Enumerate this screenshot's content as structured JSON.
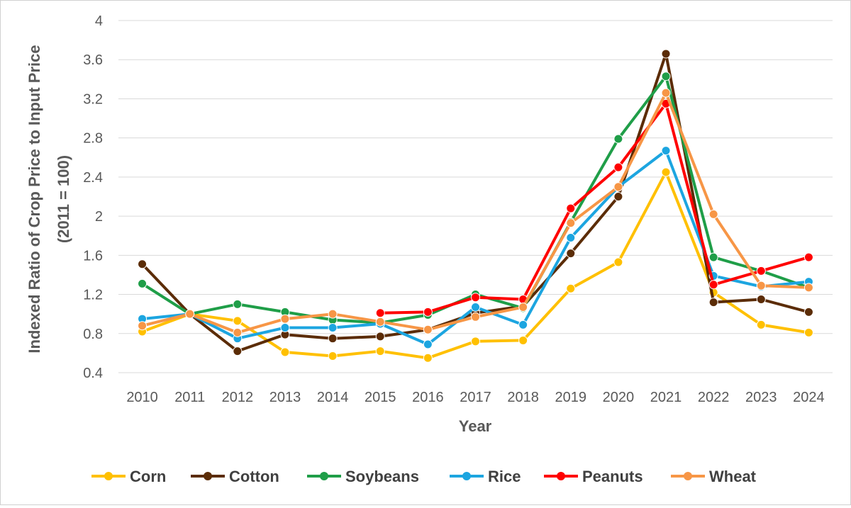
{
  "chart_data": {
    "type": "line",
    "title": "",
    "xlabel": "Year",
    "ylabel_line1": "Indexed Ratio of Crop Price to Input Price",
    "ylabel_line2": "(2011 = 100)",
    "ylim": [
      0.4,
      4
    ],
    "yticks": [
      "0.4",
      "0.8",
      "1.2",
      "1.6",
      "2",
      "2.4",
      "2.8",
      "3.2",
      "3.6",
      "4"
    ],
    "ytick_values": [
      0.4,
      0.8,
      1.2,
      1.6,
      2.0,
      2.4,
      2.8,
      3.2,
      3.6,
      4.0
    ],
    "grid": "horizontal",
    "legend_position": "bottom",
    "categories": [
      "2010",
      "2011",
      "2012",
      "2013",
      "2014",
      "2015",
      "2016",
      "2017",
      "2018",
      "2019",
      "2020",
      "2021",
      "2022",
      "2023",
      "2024"
    ],
    "series": [
      {
        "name": "Corn",
        "color": "#FFC000",
        "values": [
          0.82,
          1.0,
          0.93,
          0.61,
          0.57,
          0.62,
          0.55,
          0.72,
          0.73,
          1.26,
          1.53,
          2.45,
          1.22,
          0.89,
          0.81
        ]
      },
      {
        "name": "Cotton",
        "color": "#5B2C06",
        "values": [
          1.51,
          1.0,
          0.62,
          0.79,
          0.75,
          0.77,
          0.84,
          1.01,
          1.08,
          1.62,
          2.2,
          3.66,
          1.12,
          1.15,
          1.02
        ]
      },
      {
        "name": "Soybeans",
        "color": "#1F9E48",
        "values": [
          1.31,
          1.0,
          1.1,
          1.02,
          0.94,
          0.91,
          0.99,
          1.2,
          1.06,
          1.94,
          2.79,
          3.43,
          1.58,
          1.44,
          1.27
        ]
      },
      {
        "name": "Rice",
        "color": "#1CA5E0",
        "values": [
          0.95,
          1.0,
          0.75,
          0.86,
          0.86,
          0.9,
          0.69,
          1.07,
          0.89,
          1.78,
          2.3,
          2.67,
          1.39,
          1.28,
          1.33
        ]
      },
      {
        "name": "Peanuts",
        "color": "#FF0000",
        "values": [
          null,
          null,
          null,
          null,
          null,
          1.01,
          1.02,
          1.17,
          1.15,
          2.08,
          2.5,
          3.15,
          1.3,
          1.44,
          1.58
        ]
      },
      {
        "name": "Wheat",
        "color": "#F79646",
        "values": [
          0.88,
          1.0,
          0.81,
          0.95,
          1.0,
          0.92,
          0.84,
          0.97,
          1.07,
          1.93,
          2.3,
          3.26,
          2.02,
          1.29,
          1.27
        ]
      }
    ]
  }
}
